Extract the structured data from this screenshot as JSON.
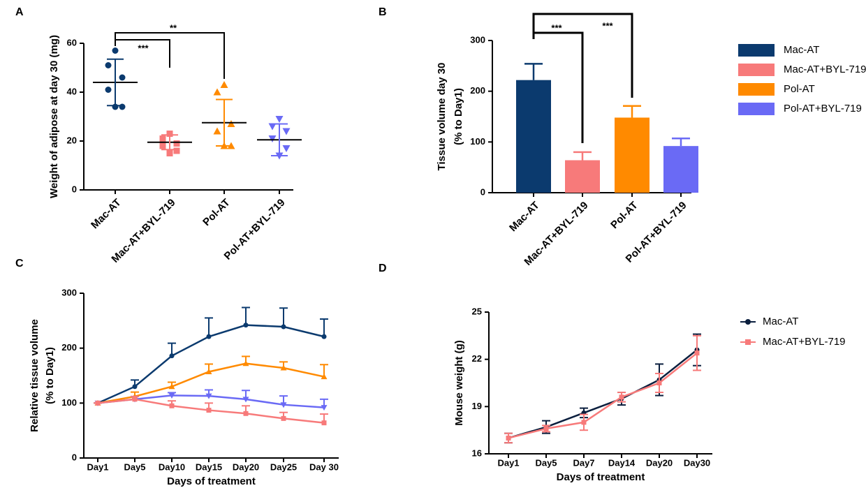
{
  "chart_data": [
    {
      "type": "scatter",
      "panel": "A",
      "ylabel": [
        "Weight of adipose at day 30 (mg)"
      ],
      "categories": [
        "Mac-AT",
        "Mac-AT+BYL-719",
        "Pol-AT",
        "Pol-AT+BYL-719"
      ],
      "values": [
        [
          57,
          51,
          46,
          41,
          34,
          34
        ],
        [
          23,
          21,
          19,
          18,
          16,
          15
        ],
        [
          43,
          40,
          27,
          24,
          18,
          18
        ],
        [
          29,
          26,
          24,
          21,
          17,
          14
        ]
      ],
      "mean": [
        44,
        19.5,
        27.5,
        20.5
      ],
      "sd": [
        9.5,
        3,
        9.5,
        6.5
      ],
      "colors": [
        "#0b3a6e",
        "#f77a7a",
        "#ff8a00",
        "#6a6af5"
      ],
      "markers": [
        "circle",
        "square",
        "triangle-up",
        "triangle-down"
      ],
      "ylim": [
        0,
        60
      ],
      "yticks": [
        0,
        20,
        40,
        60
      ],
      "annotations": [
        "***",
        "**"
      ]
    },
    {
      "type": "bar",
      "panel": "B",
      "ylabel": [
        "Tissue volume  day 30",
        "(% to Day1)"
      ],
      "categories": [
        "Mac-AT",
        "Mac-AT+BYL-719",
        "Pol-AT",
        "Pol-AT+BYL-719"
      ],
      "values": [
        222,
        64,
        148,
        92
      ],
      "errors": [
        32,
        16,
        23,
        15
      ],
      "colors": [
        "#0b3a6e",
        "#f77a7a",
        "#ff8a00",
        "#6a6af5"
      ],
      "ylim": [
        0,
        300
      ],
      "yticks": [
        0,
        100,
        200,
        300
      ],
      "annotations": [
        "***",
        "***"
      ],
      "legend": "right"
    },
    {
      "type": "line",
      "panel": "C",
      "ylabel": [
        "Relative tissue volume",
        "(% to Day1)"
      ],
      "xlabel": "Days of treatment",
      "categories": [
        "Day1",
        "Day5",
        "Day10",
        "Day15",
        "Day20",
        "Day25",
        "Day 30"
      ],
      "series": [
        {
          "name": "Mac-AT",
          "color": "#0b3a6e",
          "marker": "circle",
          "values": [
            100,
            130,
            186,
            221,
            242,
            239,
            221
          ],
          "errors": [
            0,
            12,
            23,
            34,
            32,
            34,
            32
          ]
        },
        {
          "name": "Pol-AT",
          "color": "#ff8a00",
          "marker": "triangle-up",
          "values": [
            100,
            112,
            130,
            157,
            172,
            164,
            148
          ],
          "errors": [
            0,
            8,
            8,
            14,
            13,
            11,
            22
          ]
        },
        {
          "name": "Pol-AT+BYL-719",
          "color": "#6a6af5",
          "marker": "triangle-down",
          "values": [
            100,
            107,
            114,
            113,
            107,
            97,
            92
          ],
          "errors": [
            0,
            5,
            5,
            11,
            16,
            16,
            15
          ]
        },
        {
          "name": "Mac-AT+BYL-719",
          "color": "#f77a7a",
          "marker": "square",
          "values": [
            100,
            107,
            95,
            87,
            81,
            72,
            64
          ],
          "errors": [
            0,
            5,
            9,
            13,
            14,
            11,
            16
          ]
        }
      ],
      "ylim": [
        0,
        300
      ],
      "yticks": [
        0,
        100,
        200,
        300
      ]
    },
    {
      "type": "line",
      "panel": "D",
      "ylabel": [
        "Mouse weight  (g)"
      ],
      "xlabel": "Days of treatment",
      "categories": [
        "Day1",
        "Day5",
        "Day7",
        "Day14",
        "Day20",
        "Day30"
      ],
      "series": [
        {
          "name": "Mac-AT",
          "color": "#0b1f3e",
          "marker": "circle",
          "values": [
            17.0,
            17.7,
            18.6,
            19.5,
            20.7,
            22.6
          ],
          "errors": [
            0.3,
            0.4,
            0.3,
            0.4,
            1.0,
            1.0
          ]
        },
        {
          "name": "Mac-AT+BYL-719",
          "color": "#f77a7a",
          "marker": "square",
          "values": [
            17.0,
            17.6,
            18.0,
            19.6,
            20.5,
            22.4
          ],
          "errors": [
            0.3,
            0.2,
            0.5,
            0.3,
            0.6,
            1.1
          ]
        }
      ],
      "ylim": [
        16,
        25
      ],
      "yticks": [
        16,
        19,
        22,
        25
      ],
      "legend": "right"
    }
  ]
}
